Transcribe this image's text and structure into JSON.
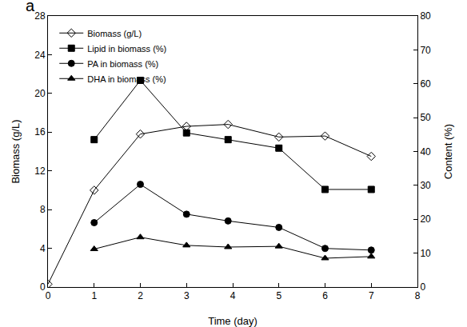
{
  "chart_data": {
    "type": "line",
    "annotations": [
      "a"
    ],
    "x_label": "Time (day)",
    "y_label": "Biomass (g/L)",
    "y2_label": "Content (%)",
    "xlim": [
      0,
      8
    ],
    "xticks": [
      0,
      1,
      2,
      3,
      4,
      5,
      6,
      7,
      8
    ],
    "ylim": [
      0,
      28
    ],
    "yticks": [
      0,
      4,
      8,
      12,
      16,
      20,
      24,
      28
    ],
    "y2lim": [
      0,
      80
    ],
    "y2ticks": [
      0,
      10,
      20,
      30,
      40,
      50,
      60,
      70,
      80
    ],
    "grid": false,
    "legend": "top-left",
    "series": [
      {
        "name": "Biomass (g/L)",
        "color": "#000000",
        "marker": "diamond-open",
        "line_style": "solid",
        "x": [
          0,
          1,
          2,
          3,
          3.9,
          5,
          6,
          7
        ],
        "values": [
          0.3,
          10.0,
          15.8,
          16.6,
          16.8,
          15.5,
          15.6,
          13.5
        ]
      },
      {
        "name": "Lipid in biomass (%)",
        "color": "#000000",
        "marker": "square",
        "line_style": "solid",
        "axis": "y2",
        "x": [
          1,
          2,
          3,
          3.9,
          5,
          6,
          7
        ],
        "values": [
          43.5,
          61.0,
          45.5,
          43.5,
          41.0,
          28.8,
          28.8
        ]
      },
      {
        "name": "PA in biomass (%)",
        "color": "#000000",
        "marker": "circle",
        "line_style": "solid",
        "axis": "y2",
        "x": [
          1,
          2,
          3,
          3.9,
          5,
          6,
          7
        ],
        "values": [
          19.0,
          30.3,
          21.5,
          19.5,
          17.6,
          11.4,
          10.9
        ]
      },
      {
        "name": "DHA in biomass (%)",
        "color": "#000000",
        "marker": "triangle-up",
        "line_style": "solid",
        "axis": "y2",
        "x": [
          1,
          2,
          3,
          3.9,
          5,
          6,
          7
        ],
        "values": [
          11.2,
          14.7,
          12.3,
          11.8,
          12.0,
          8.5,
          9.0
        ]
      }
    ]
  }
}
